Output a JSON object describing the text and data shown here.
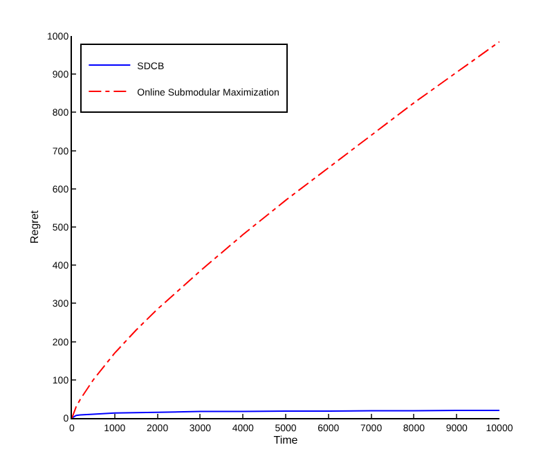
{
  "chart_data": {
    "type": "line",
    "xlabel": "Time",
    "ylabel": "Regret",
    "x": [
      0,
      100,
      200,
      500,
      1000,
      1500,
      2000,
      3000,
      4000,
      5000,
      6000,
      7000,
      8000,
      9000,
      10000
    ],
    "series": [
      {
        "name": "SDCB",
        "color": "#0000ff",
        "line_style": "solid",
        "values": [
          0,
          7,
          8,
          10,
          13,
          14,
          15,
          17,
          17,
          18,
          18,
          19,
          19,
          20,
          20
        ]
      },
      {
        "name": "Online Submodular Maximization",
        "color": "#ff0000",
        "line_style": "dashdot",
        "values": [
          0,
          30,
          50,
          100,
          170,
          230,
          285,
          385,
          480,
          570,
          655,
          740,
          825,
          905,
          985
        ]
      }
    ],
    "xlim": [
      0,
      10000
    ],
    "xticks": [
      0,
      1000,
      2000,
      3000,
      4000,
      5000,
      6000,
      7000,
      8000,
      9000,
      10000
    ],
    "ylim": [
      0,
      1000
    ],
    "yticks": [
      0,
      100,
      200,
      300,
      400,
      500,
      600,
      700,
      800,
      900,
      1000
    ],
    "grid": false,
    "legend": "top left",
    "marker": "none"
  }
}
